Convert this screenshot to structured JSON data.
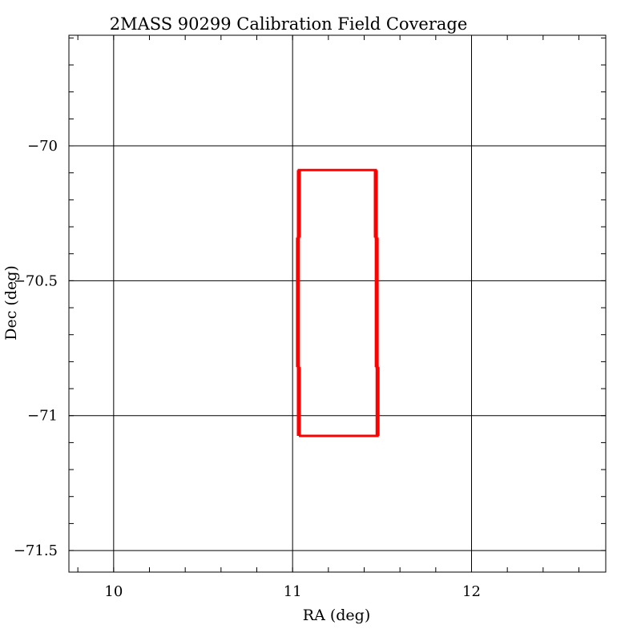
{
  "chart_data": {
    "type": "line",
    "title": "2MASS 90299 Calibration Field Coverage",
    "xlabel": "RA (deg)",
    "ylabel": "Dec (deg)",
    "xlim": [
      9.75,
      12.75
    ],
    "ylim": [
      -71.58,
      -69.59
    ],
    "x_major_ticks": [
      10,
      11,
      12
    ],
    "x_tick_labels": [
      "10",
      "11",
      "12"
    ],
    "y_major_ticks": [
      -70,
      -70.5,
      -71,
      -71.5
    ],
    "y_tick_labels": [
      "−70",
      "−70.5",
      "−71",
      "−71.5"
    ],
    "x_minor_step": 0.2,
    "y_minor_step": 0.1,
    "grid": true,
    "colors": {
      "coverage": "#ff0000",
      "grid": "#000000",
      "frame": "#000000"
    },
    "series": [
      {
        "points": [
          [
            11.035,
            -71.075
          ],
          [
            11.035,
            -70.82
          ],
          [
            11.03,
            -70.82
          ],
          [
            11.03,
            -70.34
          ],
          [
            11.035,
            -70.34
          ],
          [
            11.035,
            -70.09
          ],
          [
            11.465,
            -70.09
          ],
          [
            11.465,
            -70.34
          ],
          [
            11.47,
            -70.34
          ],
          [
            11.47,
            -70.82
          ],
          [
            11.475,
            -70.82
          ],
          [
            11.475,
            -71.075
          ],
          [
            11.035,
            -71.075
          ]
        ]
      }
    ]
  }
}
